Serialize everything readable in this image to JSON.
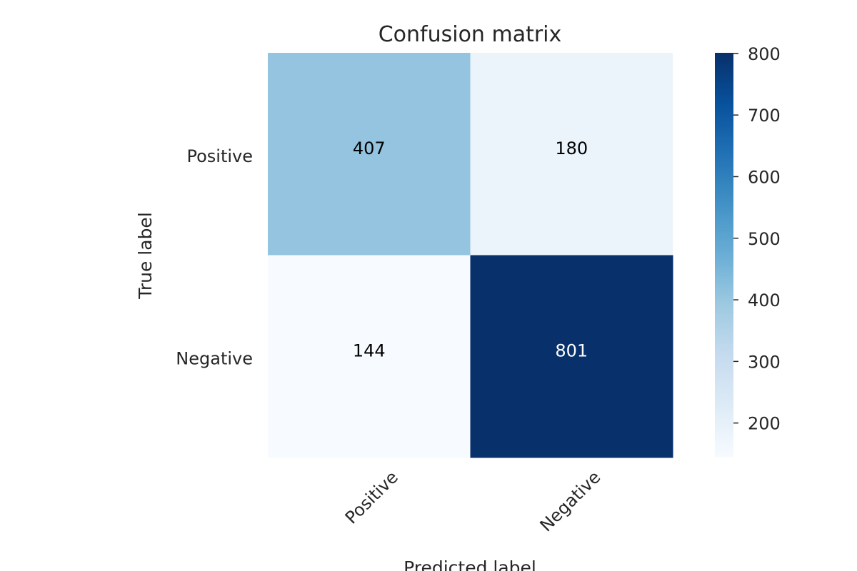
{
  "chart_data": {
    "type": "heatmap",
    "title": "Confusion matrix",
    "xlabel": "Predicted label",
    "ylabel": "True label",
    "x_categories": [
      "Positive",
      "Negative"
    ],
    "y_categories": [
      "Positive",
      "Negative"
    ],
    "values": [
      [
        407,
        180
      ],
      [
        144,
        801
      ]
    ],
    "colormap": "Blues",
    "colorbar": {
      "ticks": [
        "200",
        "300",
        "400",
        "500",
        "600",
        "700",
        "800"
      ],
      "vmin": 144,
      "vmax": 801
    },
    "grid": false,
    "colors": {
      "low": "#f7fbff",
      "high": "#08306b"
    }
  }
}
